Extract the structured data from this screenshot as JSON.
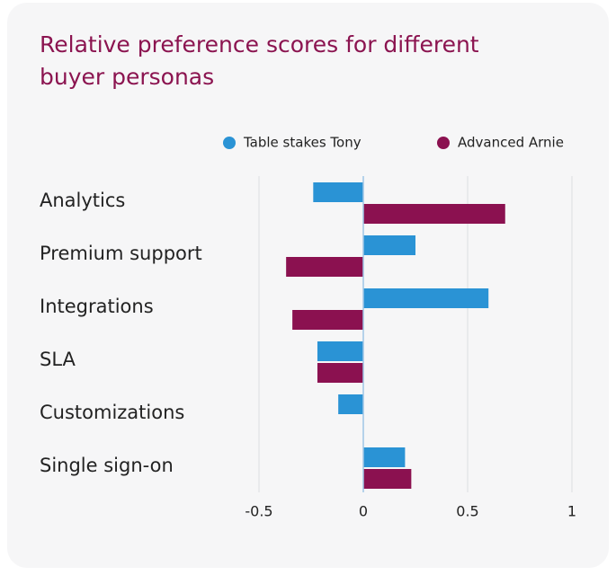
{
  "chart_data": {
    "type": "bar",
    "orientation": "horizontal",
    "title": "Relative preference scores for different buyer personas",
    "categories": [
      "Analytics",
      "Premium support",
      "Integrations",
      "SLA",
      "Customizations",
      "Single sign-on"
    ],
    "series": [
      {
        "name": "Table stakes Tony",
        "color": "#2a93d5",
        "values": [
          -0.24,
          0.25,
          0.6,
          -0.22,
          -0.12,
          0.2
        ]
      },
      {
        "name": "Advanced Arnie",
        "color": "#8b1150",
        "values": [
          0.68,
          -0.37,
          -0.34,
          -0.22,
          null,
          0.23
        ]
      }
    ],
    "xlim": [
      -0.5,
      1
    ],
    "xticks": [
      -0.5,
      0,
      0.5,
      1
    ],
    "grid": true
  }
}
